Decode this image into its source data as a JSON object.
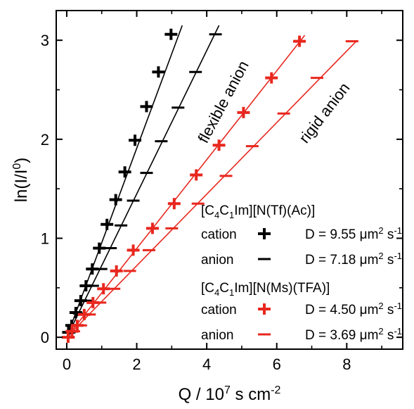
{
  "chart_data": {
    "type": "scatter",
    "xlabel": {
      "main": "Q / 10",
      "sup": "7",
      "rest": " s cm",
      "sup2": "-2"
    },
    "ylabel": {
      "main": "ln(I/I",
      "sup": "0",
      "rest": ")"
    },
    "xlim": [
      -0.3,
      9.6
    ],
    "ylim": [
      -0.12,
      3.3
    ],
    "xticks": [
      0,
      2,
      4,
      6,
      8
    ],
    "yticks": [
      0,
      1,
      2,
      3
    ],
    "grid": false,
    "legend_position": "bottom-right",
    "annotations": [
      {
        "text": "flexible anion",
        "color": "#000000"
      },
      {
        "text": "rigid anion",
        "color": "#000000"
      }
    ],
    "legend_groups": [
      {
        "title_parts": [
          "[C",
          "4",
          "C",
          "1",
          "Im][N(Tf)(Ac)]"
        ]
      },
      {
        "title_parts": [
          "[C",
          "4",
          "C",
          "1",
          "Im][N(Ms)(TFA)]"
        ]
      }
    ],
    "series": [
      {
        "name": "cation",
        "label": "D = 9.55 μm",
        "label_unit_sup": "2",
        "label_tail": " s",
        "label_tail_sup": "-1",
        "group": 0,
        "marker": "plus",
        "color": "#000000",
        "fit": [
          0,
          0,
          3.3,
          3.15
        ],
        "x": [
          0.05,
          0.14,
          0.26,
          0.4,
          0.55,
          0.73,
          0.93,
          1.15,
          1.4,
          1.66,
          1.95,
          2.28,
          2.62,
          2.98
        ],
        "y": [
          0.05,
          0.12,
          0.25,
          0.37,
          0.52,
          0.69,
          0.9,
          1.14,
          1.39,
          1.67,
          1.99,
          2.33,
          2.68,
          3.06
        ]
      },
      {
        "name": "anion",
        "label": "D = 7.18 μm",
        "label_unit_sup": "2",
        "label_tail": " s",
        "label_tail_sup": "-1",
        "group": 0,
        "marker": "minus",
        "color": "#000000",
        "fit": [
          0,
          0,
          4.35,
          3.15
        ],
        "x": [
          0.07,
          0.2,
          0.36,
          0.54,
          0.74,
          0.98,
          1.25,
          1.55,
          1.9,
          2.28,
          2.7,
          3.18,
          3.68,
          4.25
        ],
        "y": [
          0.05,
          0.12,
          0.24,
          0.37,
          0.52,
          0.69,
          0.9,
          1.13,
          1.38,
          1.66,
          1.98,
          2.32,
          2.68,
          3.06
        ]
      },
      {
        "name": "cation",
        "label": "D = 4.50 μm",
        "label_unit_sup": "2",
        "label_tail": " s",
        "label_tail_sup": "-1",
        "group": 1,
        "marker": "plus",
        "color": "#e8271e",
        "fit": [
          0,
          0,
          6.8,
          3.05
        ],
        "x": [
          0.04,
          0.15,
          0.3,
          0.5,
          0.75,
          1.05,
          1.42,
          1.9,
          2.45,
          3.07,
          3.7,
          4.35,
          5.05,
          5.85,
          6.65
        ],
        "y": [
          0.0,
          0.06,
          0.12,
          0.23,
          0.35,
          0.49,
          0.67,
          0.88,
          1.1,
          1.35,
          1.64,
          1.94,
          2.27,
          2.62,
          2.99
        ]
      },
      {
        "name": "anion",
        "label": "D = 3.69 μm",
        "label_unit_sup": "2",
        "label_tail": " s",
        "label_tail_sup": "-1",
        "group": 1,
        "marker": "minus",
        "color": "#e8271e",
        "fit": [
          0,
          0,
          8.3,
          3.0
        ],
        "x": [
          0.05,
          0.2,
          0.4,
          0.65,
          0.95,
          1.35,
          1.8,
          2.35,
          3.0,
          3.75,
          4.55,
          5.3,
          6.2,
          7.15,
          8.15
        ],
        "y": [
          0.0,
          0.06,
          0.12,
          0.23,
          0.35,
          0.49,
          0.67,
          0.88,
          1.1,
          1.35,
          1.63,
          1.93,
          2.26,
          2.62,
          2.99
        ]
      }
    ]
  }
}
